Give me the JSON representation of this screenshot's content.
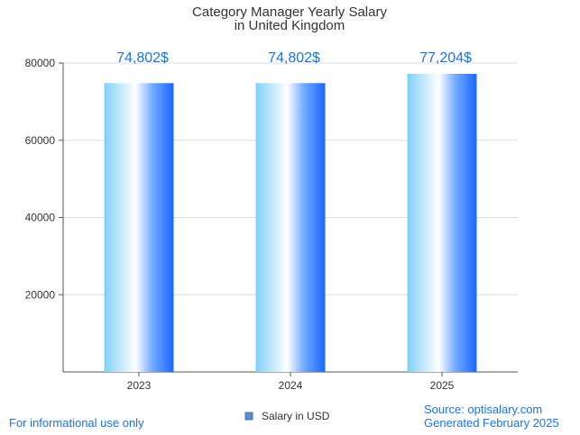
{
  "chart_data": {
    "type": "bar",
    "title": [
      "Category Manager Yearly Salary",
      "in United Kingdom"
    ],
    "categories": [
      "2023",
      "2024",
      "2025"
    ],
    "series": [
      {
        "name": "Salary in USD",
        "values": [
          74802,
          74802,
          77204
        ]
      }
    ],
    "data_labels": [
      "74,802$",
      "74,802$",
      "77,204$"
    ],
    "y_ticks": [
      20000,
      40000,
      60000,
      80000
    ],
    "ylim": [
      0,
      80000
    ],
    "xlabel": "",
    "ylabel": "",
    "grid": true,
    "legend_position": "bottom-center"
  },
  "footer": {
    "disclaimer": "For informational use only",
    "source": "Source: optisalary.com",
    "generated": "Generated February 2025"
  },
  "colors": {
    "accent": "#1a73e8",
    "bar_light": "#7fd0f8",
    "bar_dark": "#1a66ff",
    "legend_swatch": "#5b8fd6",
    "grid": "#dddddd",
    "axis": "#555555"
  }
}
